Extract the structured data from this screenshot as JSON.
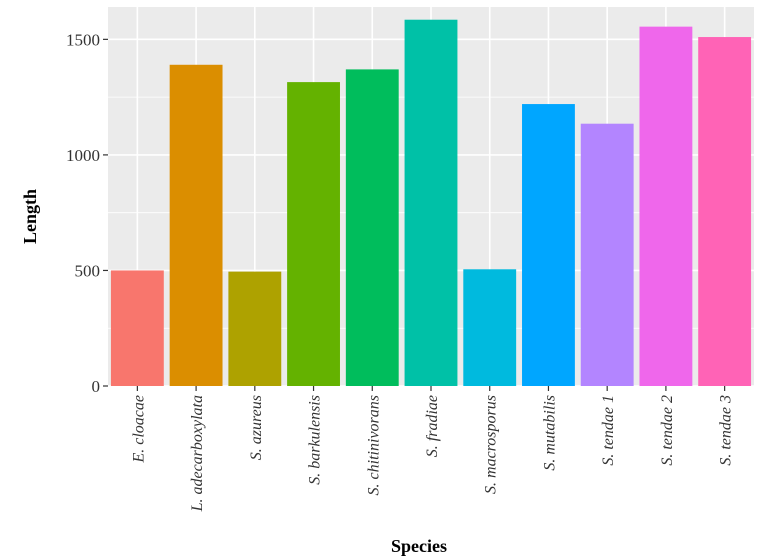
{
  "chart_data": {
    "type": "bar",
    "title": "",
    "xlabel": "Species",
    "ylabel": "Length",
    "categories": [
      "E. cloacae",
      "L. adecarboxylata",
      "S. azureus",
      "S. barkulensis",
      "S. chitinivorans",
      "S. fradiae",
      "S. macrosporus",
      "S. mutabilis",
      "S. tendae 1",
      "S. tendae 2",
      "S. tendae 3"
    ],
    "values": [
      500,
      1390,
      495,
      1315,
      1370,
      1585,
      505,
      1220,
      1135,
      1555,
      1510
    ],
    "colors": [
      "#F8766D",
      "#DB8E00",
      "#AEA200",
      "#64B200",
      "#00BD5C",
      "#00C1A7",
      "#00BADE",
      "#00A6FF",
      "#B385FF",
      "#EF67EB",
      "#FF63B6"
    ],
    "yticks": [
      0,
      500,
      1000,
      1500
    ],
    "ytick_labels": [
      "0",
      "500",
      "1000",
      "1500"
    ],
    "ylim": [
      0,
      1640
    ],
    "grid": true,
    "legend": "none",
    "panel_background": "#EBEBEB",
    "gridline_color": "#FFFFFF"
  }
}
